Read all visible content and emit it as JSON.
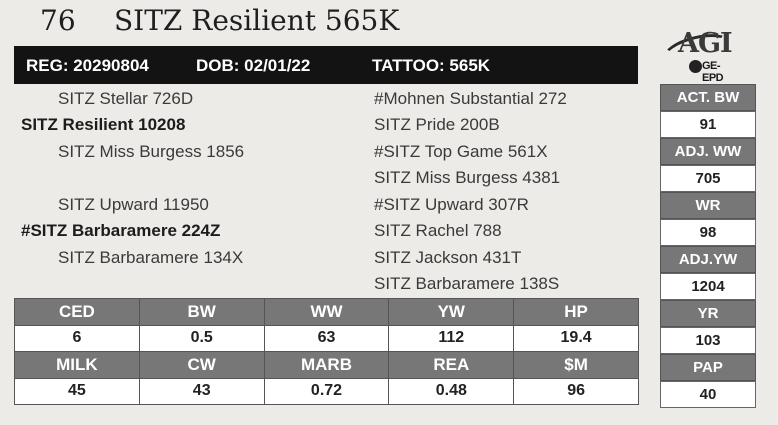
{
  "header": {
    "lot_number": "76",
    "animal_name": "SITZ Resilient 565K"
  },
  "reg_bar": {
    "reg": "REG: 20290804",
    "dob": "DOB: 02/01/22",
    "tattoo": "TATTOO: 565K"
  },
  "logo": {
    "text": "AGI",
    "subtext": "GE-EPD"
  },
  "pedigree": {
    "sire_sire": "SITZ Stellar 726D",
    "sire": "SITZ Resilient 10208",
    "sire_dam": "SITZ Miss Burgess 1856",
    "dam_sire": "SITZ Upward 11950",
    "dam": "#SITZ Barbaramere 224Z",
    "dam_dam": "SITZ Barbaramere 134X",
    "right": [
      "#Mohnen Substantial 272",
      "SITZ Pride 200B",
      "#SITZ Top Game 561X",
      "SITZ Miss Burgess 4381",
      "#SITZ Upward 307R",
      "SITZ Rachel 788",
      "SITZ Jackson 431T",
      "SITZ Barbaramere 138S"
    ]
  },
  "side_stats": [
    {
      "label": "ACT. BW",
      "value": "91"
    },
    {
      "label": "ADJ. WW",
      "value": "705"
    },
    {
      "label": "WR",
      "value": "98"
    },
    {
      "label": "ADJ.YW",
      "value": "1204"
    },
    {
      "label": "YR",
      "value": "103"
    },
    {
      "label": "PAP",
      "value": "40"
    }
  ],
  "epd_rows": [
    {
      "headers": [
        "CED",
        "BW",
        "WW",
        "YW",
        "HP"
      ],
      "values": [
        "6",
        "0.5",
        "63",
        "112",
        "19.4"
      ]
    },
    {
      "headers": [
        "MILK",
        "CW",
        "MARB",
        "REA",
        "$M"
      ],
      "values": [
        "45",
        "43",
        "0.72",
        "0.48",
        "96"
      ]
    }
  ]
}
